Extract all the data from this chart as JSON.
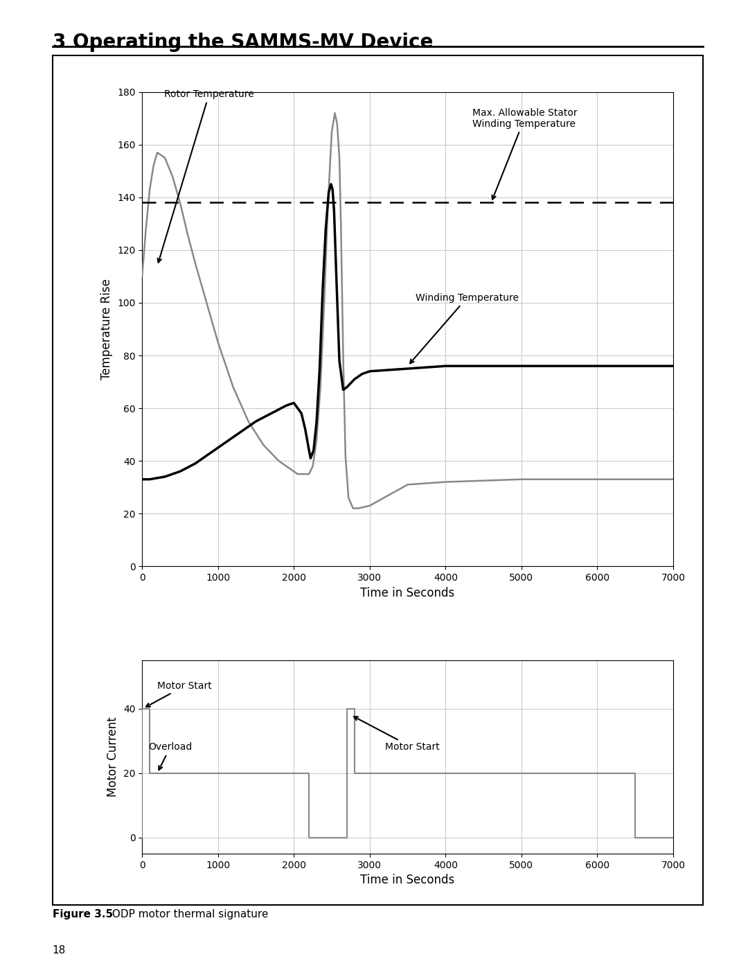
{
  "title": "3 Operating the SAMMS-MV Device",
  "figure_caption_bold": "Figure 3.5",
  "figure_caption_normal": " ODP motor thermal signature",
  "page_number": "18",
  "top_chart": {
    "xlabel": "Time in Seconds",
    "ylabel": "Temperature Rise",
    "xlim": [
      0,
      7000
    ],
    "ylim": [
      0,
      180
    ],
    "xticks": [
      0,
      1000,
      2000,
      3000,
      4000,
      5000,
      6000,
      7000
    ],
    "yticks": [
      0,
      20,
      40,
      60,
      80,
      100,
      120,
      140,
      160,
      180
    ],
    "dashed_line_y": 138
  },
  "bottom_chart": {
    "xlabel": "Time in Seconds",
    "ylabel": "Motor Current",
    "xlim": [
      0,
      7000
    ],
    "ylim": [
      -5,
      55
    ],
    "xticks": [
      0,
      1000,
      2000,
      3000,
      4000,
      5000,
      6000,
      7000
    ],
    "yticks": [
      0,
      20,
      40
    ]
  },
  "rotor_t": [
    0,
    50,
    100,
    150,
    200,
    300,
    400,
    500,
    600,
    700,
    800,
    900,
    1000,
    1200,
    1400,
    1600,
    1800,
    2000,
    2050,
    2100,
    2150,
    2200,
    2250,
    2300,
    2350,
    2400,
    2450,
    2500,
    2540,
    2570,
    2600,
    2620,
    2650,
    2680,
    2720,
    2780,
    2850,
    3000,
    3500,
    4000,
    5000,
    6000,
    7000
  ],
  "rotor_v": [
    110,
    128,
    143,
    152,
    157,
    155,
    148,
    138,
    126,
    115,
    105,
    95,
    85,
    68,
    55,
    46,
    40,
    36,
    35,
    35,
    35,
    35,
    38,
    48,
    68,
    100,
    138,
    165,
    172,
    168,
    155,
    130,
    80,
    42,
    26,
    22,
    22,
    23,
    31,
    32,
    33,
    33,
    33
  ],
  "winding_t": [
    0,
    100,
    300,
    500,
    700,
    900,
    1100,
    1300,
    1500,
    1700,
    1900,
    2000,
    2100,
    2150,
    2200,
    2220,
    2260,
    2300,
    2340,
    2380,
    2420,
    2460,
    2490,
    2510,
    2530,
    2560,
    2600,
    2650,
    2700,
    2800,
    2900,
    3000,
    3500,
    4000,
    5000,
    6000,
    7000
  ],
  "winding_v": [
    33,
    33,
    34,
    36,
    39,
    43,
    47,
    51,
    55,
    58,
    61,
    62,
    58,
    52,
    44,
    41,
    44,
    55,
    75,
    105,
    128,
    142,
    145,
    143,
    135,
    110,
    78,
    67,
    68,
    71,
    73,
    74,
    75,
    76,
    76,
    76,
    76
  ],
  "current_t": [
    0,
    0,
    100,
    100,
    2200,
    2200,
    2700,
    2700,
    2800,
    2800,
    6500,
    6500,
    7000
  ],
  "current_v": [
    0,
    40,
    40,
    20,
    20,
    0,
    0,
    40,
    40,
    20,
    20,
    0,
    0
  ],
  "colors": {
    "rotor_curve": "#888888",
    "winding_curve": "#000000",
    "current_line": "#888888",
    "background": "#ffffff",
    "box_border": "#000000",
    "grid": "#cccccc",
    "dashed_line": "#000000",
    "title_line": "#000000"
  }
}
